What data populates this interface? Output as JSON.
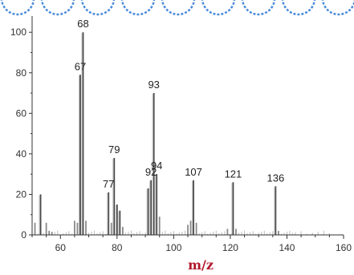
{
  "chart_data": {
    "type": "bar",
    "title": "",
    "xlabel": "m/z",
    "ylabel": "",
    "xlim": [
      50,
      160
    ],
    "ylim": [
      0,
      108
    ],
    "x_ticks": [
      60,
      80,
      100,
      120,
      140,
      160
    ],
    "y_ticks": [
      0,
      20,
      40,
      60,
      80,
      100
    ],
    "grid": false,
    "colors": {
      "bar": "#4a4a4a",
      "minor_bar": "#bdbdbd",
      "axis": "#333333",
      "title": "#b2182b",
      "top_band": "#1f6fd1"
    },
    "peaks": [
      {
        "x": 51,
        "y": 6
      },
      {
        "x": 53,
        "y": 20
      },
      {
        "x": 55,
        "y": 6
      },
      {
        "x": 56,
        "y": 2
      },
      {
        "x": 57,
        "y": 1.5
      },
      {
        "x": 65,
        "y": 7
      },
      {
        "x": 66,
        "y": 6
      },
      {
        "x": 67,
        "y": 79
      },
      {
        "x": 68,
        "y": 100
      },
      {
        "x": 69,
        "y": 7
      },
      {
        "x": 77,
        "y": 21
      },
      {
        "x": 78,
        "y": 6
      },
      {
        "x": 79,
        "y": 38
      },
      {
        "x": 80,
        "y": 15
      },
      {
        "x": 81,
        "y": 12
      },
      {
        "x": 82,
        "y": 4
      },
      {
        "x": 91,
        "y": 23
      },
      {
        "x": 92,
        "y": 27
      },
      {
        "x": 93,
        "y": 70
      },
      {
        "x": 94,
        "y": 30
      },
      {
        "x": 95,
        "y": 9
      },
      {
        "x": 105,
        "y": 5
      },
      {
        "x": 106,
        "y": 7
      },
      {
        "x": 107,
        "y": 27
      },
      {
        "x": 108,
        "y": 6
      },
      {
        "x": 119,
        "y": 3
      },
      {
        "x": 121,
        "y": 26
      },
      {
        "x": 122,
        "y": 3
      },
      {
        "x": 136,
        "y": 24
      },
      {
        "x": 137,
        "y": 2
      }
    ],
    "labels": [
      {
        "text": "67",
        "x": 67,
        "y": 79
      },
      {
        "text": "68",
        "x": 68,
        "y": 100
      },
      {
        "text": "77",
        "x": 77,
        "y": 21
      },
      {
        "text": "79",
        "x": 79,
        "y": 38
      },
      {
        "text": "92",
        "x": 92,
        "y": 27
      },
      {
        "text": "93",
        "x": 93,
        "y": 70
      },
      {
        "text": "94",
        "x": 94,
        "y": 30
      },
      {
        "text": "107",
        "x": 107,
        "y": 27
      },
      {
        "text": "121",
        "x": 121,
        "y": 26
      },
      {
        "text": "136",
        "x": 136,
        "y": 24
      }
    ]
  }
}
